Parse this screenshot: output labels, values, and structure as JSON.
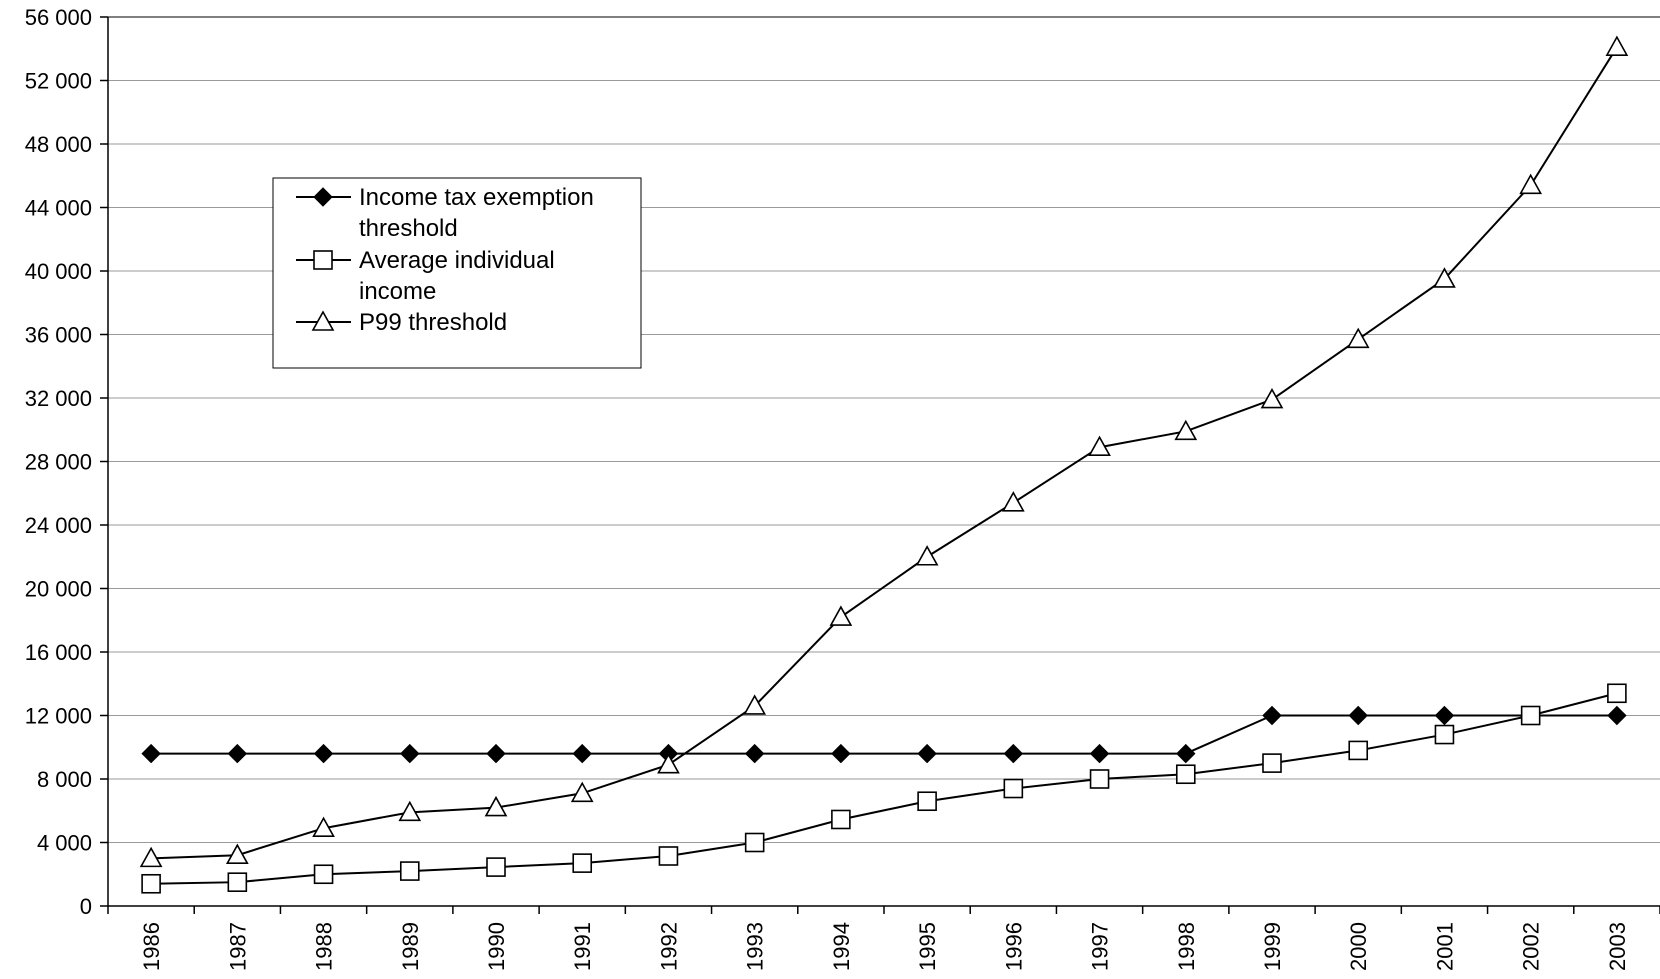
{
  "chart_data": {
    "type": "line",
    "title": "",
    "xlabel": "",
    "ylabel": "",
    "ylim": [
      0,
      56000
    ],
    "yticks": [
      0,
      4000,
      8000,
      12000,
      16000,
      20000,
      24000,
      28000,
      32000,
      36000,
      40000,
      44000,
      48000,
      52000,
      56000
    ],
    "ytick_labels": [
      "0",
      "4 000",
      "8 000",
      "12 000",
      "16 000",
      "20 000",
      "24 000",
      "28 000",
      "32 000",
      "36 000",
      "40 000",
      "44 000",
      "48 000",
      "52 000",
      "56 000"
    ],
    "categories": [
      "1986",
      "1987",
      "1988",
      "1989",
      "1990",
      "1991",
      "1992",
      "1993",
      "1994",
      "1995",
      "1996",
      "1997",
      "1998",
      "1999",
      "2000",
      "2001",
      "2002",
      "2003"
    ],
    "grid": true,
    "legend_position": "upper-left",
    "series": [
      {
        "name": "Income tax exemption threshold",
        "legend_lines": [
          "Income tax exemption",
          "threshold"
        ],
        "marker": "diamond-filled",
        "color": "#000000",
        "values": [
          9600,
          9600,
          9600,
          9600,
          9600,
          9600,
          9600,
          9600,
          9600,
          9600,
          9600,
          9600,
          9600,
          12000,
          12000,
          12000,
          12000,
          12000
        ]
      },
      {
        "name": "Average individual income",
        "legend_lines": [
          "Average individual",
          "income"
        ],
        "marker": "square-open",
        "color": "#000000",
        "values": [
          1400,
          1500,
          2000,
          2200,
          2450,
          2700,
          3150,
          4000,
          5450,
          6600,
          7400,
          8000,
          8300,
          9000,
          9800,
          10800,
          12000,
          13400
        ]
      },
      {
        "name": "P99 threshold",
        "legend_lines": [
          "P99 threshold"
        ],
        "marker": "triangle-open",
        "color": "#000000",
        "values": [
          3000,
          3200,
          4900,
          5900,
          6200,
          7100,
          8900,
          12600,
          18200,
          22000,
          25400,
          28900,
          29900,
          31900,
          35700,
          39500,
          45400,
          54100
        ]
      }
    ]
  }
}
